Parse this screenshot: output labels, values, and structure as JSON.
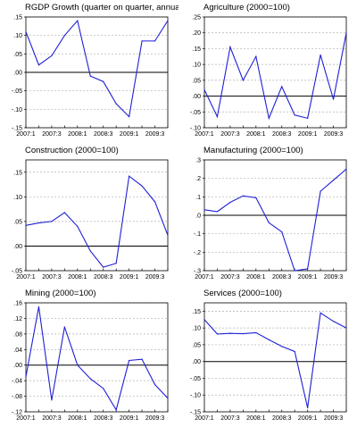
{
  "figure": {
    "series_color": "#1f1fd6",
    "zero_line_color": "#000000"
  },
  "chart_data": [
    {
      "type": "line",
      "title": "RGDP Growth (quarter on quarter, annualised)",
      "x": [
        "2007:1",
        "2007:2",
        "2007:3",
        "2007:4",
        "2008:1",
        "2008:2",
        "2008:3",
        "2008:4",
        "2009:1",
        "2009:2",
        "2009:3",
        "2009:4"
      ],
      "xticks": [
        "2007:1",
        "2007:3",
        "2008:1",
        "2008:3",
        "2009:1",
        "2009:3"
      ],
      "values": [
        0.11,
        0.02,
        0.045,
        0.1,
        0.14,
        -0.01,
        -0.025,
        -0.085,
        -0.12,
        0.085,
        0.085,
        0.14
      ],
      "yticks": [
        0.15,
        0.1,
        0.05,
        0.0,
        -0.05,
        -0.1,
        -0.15
      ],
      "ytick_labels": [
        ".15",
        ".10",
        ".05",
        ".00",
        "-.05",
        "-.10",
        "-.15"
      ],
      "ylim": [
        -0.15,
        0.15
      ],
      "grid": true
    },
    {
      "type": "line",
      "title": "Agriculture (2000=100)",
      "x": [
        "2007:1",
        "2007:2",
        "2007:3",
        "2007:4",
        "2008:1",
        "2008:2",
        "2008:3",
        "2008:4",
        "2009:1",
        "2009:2",
        "2009:3",
        "2009:4"
      ],
      "xticks": [
        "2007:1",
        "2007:3",
        "2008:1",
        "2008:3",
        "2009:1",
        "2009:3"
      ],
      "values": [
        0.02,
        -0.065,
        0.155,
        0.05,
        0.125,
        -0.07,
        0.03,
        -0.06,
        -0.07,
        0.13,
        -0.01,
        0.2
      ],
      "yticks": [
        0.25,
        0.2,
        0.15,
        0.1,
        0.05,
        0.0,
        -0.05,
        -0.1
      ],
      "ytick_labels": [
        ".25",
        ".20",
        ".15",
        ".10",
        ".05",
        ".00",
        "-.05",
        "-.10"
      ],
      "ylim": [
        -0.1,
        0.25
      ],
      "grid": true
    },
    {
      "type": "line",
      "title": "Construction (2000=100)",
      "x": [
        "2007:1",
        "2007:2",
        "2007:3",
        "2007:4",
        "2008:1",
        "2008:2",
        "2008:3",
        "2008:4",
        "2009:1",
        "2009:2",
        "2009:3",
        "2009:4"
      ],
      "xticks": [
        "2007:1",
        "2007:3",
        "2008:1",
        "2008:3",
        "2009:1",
        "2009:3"
      ],
      "values": [
        0.042,
        0.047,
        0.05,
        0.068,
        0.04,
        -0.01,
        -0.043,
        -0.035,
        0.142,
        0.122,
        0.09,
        0.022
      ],
      "yticks": [
        0.15,
        0.1,
        0.05,
        0.0,
        -0.05
      ],
      "ytick_labels": [
        ".15",
        ".10",
        ".05",
        ".00",
        "-.05"
      ],
      "ylim": [
        -0.05,
        0.175
      ],
      "grid": true
    },
    {
      "type": "line",
      "title": "Manufacturing (2000=100)",
      "x": [
        "2007:1",
        "2007:2",
        "2007:3",
        "2007:4",
        "2008:1",
        "2008:2",
        "2008:3",
        "2008:4",
        "2009:1",
        "2009:2",
        "2009:3",
        "2009:4"
      ],
      "xticks": [
        "2007:1",
        "2007:3",
        "2008:1",
        "2008:3",
        "2009:1",
        "2009:3"
      ],
      "values": [
        0.03,
        0.02,
        0.07,
        0.105,
        0.095,
        -0.04,
        -0.09,
        -0.3,
        -0.29,
        0.13,
        0.19,
        0.25
      ],
      "yticks": [
        0.3,
        0.2,
        0.1,
        0.0,
        -0.1,
        -0.2,
        -0.3
      ],
      "ytick_labels": [
        ".3",
        ".2",
        ".1",
        ".0",
        "-.1",
        "-.2",
        "-.3"
      ],
      "ylim": [
        -0.3,
        0.3
      ],
      "grid": true
    },
    {
      "type": "line",
      "title": "Mining (2000=100)",
      "x": [
        "2007:1",
        "2007:2",
        "2007:3",
        "2007:4",
        "2008:1",
        "2008:2",
        "2008:3",
        "2008:4",
        "2009:1",
        "2009:2",
        "2009:3",
        "2009:4"
      ],
      "xticks": [
        "2007:1",
        "2007:3",
        "2008:1",
        "2008:3",
        "2009:1",
        "2009:3"
      ],
      "values": [
        -0.03,
        0.15,
        -0.09,
        0.098,
        0.0,
        -0.035,
        -0.06,
        -0.115,
        0.012,
        0.015,
        -0.05,
        -0.085
      ],
      "yticks": [
        0.16,
        0.12,
        0.08,
        0.04,
        0.0,
        -0.04,
        -0.08,
        -0.12
      ],
      "ytick_labels": [
        ".16",
        ".12",
        ".08",
        ".04",
        ".00",
        "-.04",
        "-.08",
        "-.12"
      ],
      "ylim": [
        -0.12,
        0.16
      ],
      "grid": true
    },
    {
      "type": "line",
      "title": "Services (2000=100)",
      "x": [
        "2007:1",
        "2007:2",
        "2007:3",
        "2007:4",
        "2008:1",
        "2008:2",
        "2008:3",
        "2008:4",
        "2009:1",
        "2009:2",
        "2009:3",
        "2009:4"
      ],
      "xticks": [
        "2007:1",
        "2007:3",
        "2008:1",
        "2008:3",
        "2009:1",
        "2009:3"
      ],
      "values": [
        0.125,
        0.082,
        0.084,
        0.083,
        0.086,
        0.065,
        0.045,
        0.03,
        -0.138,
        0.145,
        0.12,
        0.1
      ],
      "yticks": [
        0.15,
        0.1,
        0.05,
        0.0,
        -0.05,
        -0.1,
        -0.15
      ],
      "ytick_labels": [
        ".15",
        ".10",
        ".05",
        ".00",
        "-.05",
        "-.10",
        "-.15"
      ],
      "ylim": [
        -0.15,
        0.175
      ],
      "grid": true
    }
  ]
}
